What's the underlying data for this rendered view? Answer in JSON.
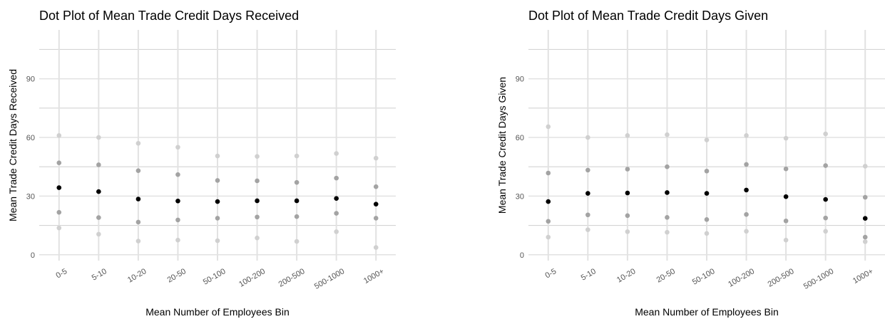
{
  "chart_data": [
    {
      "type": "dot",
      "title": "Dot Plot of Mean Trade Credit Days Received",
      "x_label": "Mean Number of Employees Bin",
      "y_label": "Mean Trade Credit Days Received",
      "categories": [
        "0-5",
        "5-10",
        "10-20",
        "20-50",
        "50-100",
        "100-200",
        "200-500",
        "500-1000",
        "1000+"
      ],
      "series": [
        {
          "color": "#d0d0d0",
          "values": [
            61,
            60,
            57,
            55,
            50.5,
            50.3,
            50.5,
            51.8,
            49.4
          ]
        },
        {
          "color": "#a3a3a3",
          "values": [
            47,
            46,
            43,
            41,
            38,
            37.8,
            37,
            39.2,
            34.8
          ]
        },
        {
          "color": "#000000",
          "values": [
            34.3,
            32.3,
            28.5,
            27.5,
            27.2,
            27.6,
            27.6,
            28.8,
            25.9
          ]
        },
        {
          "color": "#a3a3a3",
          "values": [
            21.7,
            19,
            16.7,
            17.8,
            18.7,
            19.3,
            19.5,
            21.2,
            18.7
          ]
        },
        {
          "color": "#d0d0d0",
          "values": [
            13.7,
            10.5,
            7,
            7.5,
            7.2,
            8.6,
            6.8,
            11.8,
            3.7
          ]
        }
      ],
      "ylim": [
        -3,
        115
      ],
      "yticks": [
        0,
        30,
        60,
        90
      ],
      "minor_yticks": [
        15,
        45,
        75,
        105
      ],
      "grid": true
    },
    {
      "type": "dot",
      "title": "Dot Plot of Mean Trade Credit Days Given",
      "x_label": "Mean Number of Employees Bin",
      "y_label": "Mean Trade Credit Days Given",
      "categories": [
        "0-5",
        "5-10",
        "10-20",
        "20-50",
        "50-100",
        "100-200",
        "200-500",
        "500-1000",
        "1000+"
      ],
      "series": [
        {
          "color": "#d0d0d0",
          "values": [
            65.5,
            60,
            61,
            61.4,
            58.7,
            61,
            59.6,
            61.8,
            45.3
          ]
        },
        {
          "color": "#a3a3a3",
          "values": [
            41.8,
            43.3,
            43.8,
            45,
            42.8,
            46.2,
            43.9,
            45.6,
            29.4
          ]
        },
        {
          "color": "#000000",
          "values": [
            27.2,
            31.4,
            31.6,
            31.8,
            31.4,
            33.1,
            29.7,
            28.3,
            18.6
          ]
        },
        {
          "color": "#a3a3a3",
          "values": [
            17.1,
            20.4,
            20,
            19.1,
            18,
            20.6,
            17.3,
            18.8,
            9
          ]
        },
        {
          "color": "#d0d0d0",
          "values": [
            9,
            12.8,
            11.8,
            11.5,
            10.9,
            12,
            7.5,
            12,
            6.7
          ]
        }
      ],
      "ylim": [
        -3,
        115
      ],
      "yticks": [
        0,
        30,
        60,
        90
      ],
      "minor_yticks": [
        15,
        45,
        75,
        105
      ],
      "grid": true
    }
  ]
}
